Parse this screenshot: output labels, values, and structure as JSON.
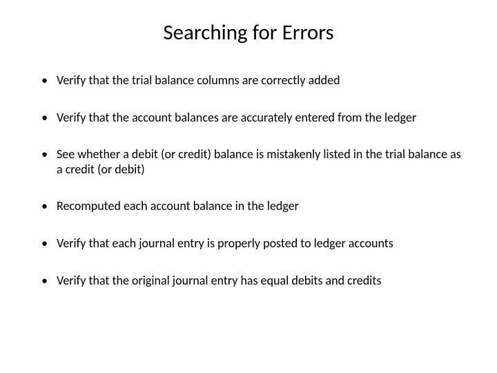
{
  "slide": {
    "title": "Searching for Errors",
    "background_color": "#ffffff",
    "text_color": "#000000",
    "title_fontsize": 31,
    "body_fontsize": 18,
    "font_family": "Calibri",
    "bullets": [
      "Verify that the trial balance columns are correctly added",
      "Verify that the account balances are accurately entered from the ledger",
      "See whether a debit (or credit) balance is mistakenly listed in the trial balance as a credit (or debit)",
      "Recomputed each account balance in the ledger",
      "Verify that each journal entry is properly posted to ledger accounts",
      "Verify that the original journal entry has equal debits and credits"
    ]
  }
}
